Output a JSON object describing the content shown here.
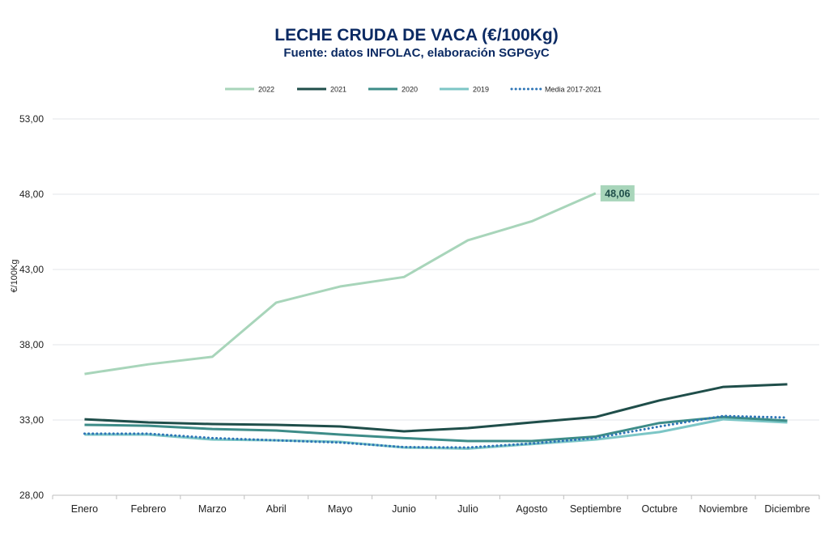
{
  "chart_data": {
    "type": "line",
    "title": "LECHE CRUDA DE VACA (€/100Kg)",
    "subtitle": "Fuente: datos INFOLAC, elaboración SGPGyC",
    "ylabel": "€/100Kg",
    "xlabel": "",
    "ylim": [
      28,
      53
    ],
    "yticks": [
      "28,00",
      "33,00",
      "38,00",
      "43,00",
      "48,00",
      "53,00"
    ],
    "grid": true,
    "legend": "top",
    "categories": [
      "Enero",
      "Febrero",
      "Marzo",
      "Abril",
      "Mayo",
      "Junio",
      "Julio",
      "Agosto",
      "Septiembre",
      "Octubre",
      "Noviembre",
      "Diciembre"
    ],
    "series": [
      {
        "name": "2022",
        "color": "#a8d5ba",
        "style": "solid",
        "values": [
          36.06,
          36.7,
          37.2,
          40.8,
          41.87,
          42.5,
          44.94,
          46.2,
          48.06,
          null,
          null,
          null
        ]
      },
      {
        "name": "2021",
        "color": "#1f4e4a",
        "style": "solid",
        "values": [
          33.05,
          32.84,
          32.73,
          32.68,
          32.57,
          32.25,
          32.46,
          32.84,
          33.2,
          34.3,
          35.2,
          35.37
        ]
      },
      {
        "name": "2020",
        "color": "#3d8c88",
        "style": "solid",
        "values": [
          32.68,
          32.62,
          32.4,
          32.3,
          32.03,
          31.8,
          31.6,
          31.6,
          31.9,
          32.8,
          33.2,
          32.95
        ]
      },
      {
        "name": "2019",
        "color": "#7cc6c6",
        "style": "solid",
        "values": [
          32.03,
          32.03,
          31.7,
          31.65,
          31.55,
          31.17,
          31.1,
          31.4,
          31.7,
          32.2,
          33.05,
          32.84
        ]
      },
      {
        "name": "Media 2017-2021",
        "color": "#2e75b6",
        "style": "dotted",
        "values": [
          32.09,
          32.09,
          31.8,
          31.65,
          31.5,
          31.2,
          31.17,
          31.44,
          31.8,
          32.57,
          33.27,
          33.16
        ]
      }
    ],
    "annotations": [
      {
        "series": "2022",
        "category": "Septiembre",
        "label": "48,06",
        "color": "#a8d5ba"
      }
    ]
  }
}
